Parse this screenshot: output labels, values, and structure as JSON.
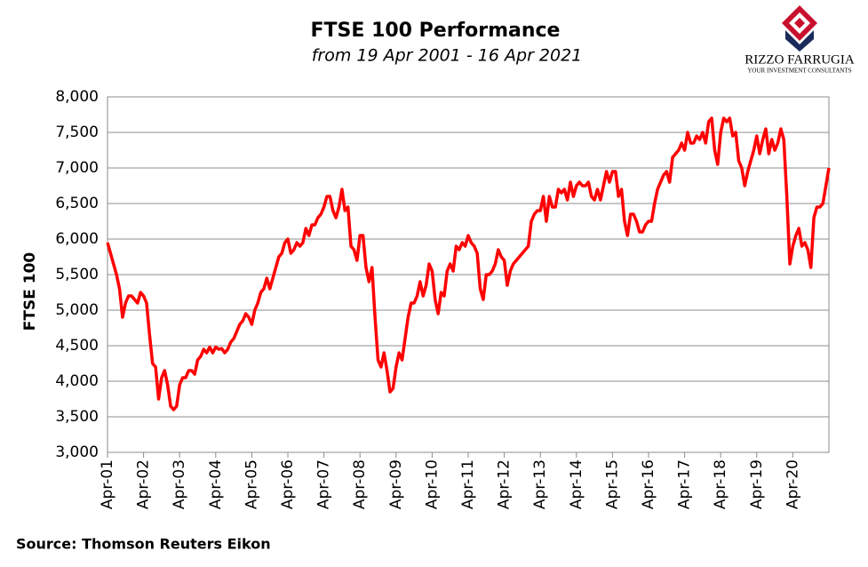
{
  "chart_data": {
    "type": "line",
    "title": "FTSE 100 Performance",
    "subtitle": "from 19 Apr 2001 - 16 Apr 2021",
    "y_label": "FTSE 100",
    "source": "Source: Thomson Reuters Eikon",
    "logo": {
      "name": "RIZZO FARRUGIA",
      "tagline": "YOUR INVESTMENT CONSULTANTS"
    },
    "color": "#ff0000",
    "grid": true,
    "ylim": [
      3000,
      8000
    ],
    "yticks": [
      {
        "value": 3000,
        "label": "3,000"
      },
      {
        "value": 3500,
        "label": "3,500"
      },
      {
        "value": 4000,
        "label": "4,000"
      },
      {
        "value": 4500,
        "label": "4,500"
      },
      {
        "value": 5000,
        "label": "5,000"
      },
      {
        "value": 5500,
        "label": "5,500"
      },
      {
        "value": 6000,
        "label": "6,000"
      },
      {
        "value": 6500,
        "label": "6,500"
      },
      {
        "value": 7000,
        "label": "7,000"
      },
      {
        "value": 7500,
        "label": "7,500"
      },
      {
        "value": 8000,
        "label": "8,000"
      }
    ],
    "categories": [
      "Apr-01",
      null,
      null,
      null,
      null,
      null,
      null,
      null,
      null,
      null,
      null,
      null,
      "Apr-02",
      null,
      null,
      null,
      null,
      null,
      null,
      null,
      null,
      null,
      null,
      null,
      "Apr-03",
      null,
      null,
      null,
      null,
      null,
      null,
      null,
      null,
      null,
      null,
      null,
      "Apr-04",
      null,
      null,
      null,
      null,
      null,
      null,
      null,
      null,
      null,
      null,
      null,
      "Apr-05",
      null,
      null,
      null,
      null,
      null,
      null,
      null,
      null,
      null,
      null,
      null,
      "Apr-06",
      null,
      null,
      null,
      null,
      null,
      null,
      null,
      null,
      null,
      null,
      null,
      "Apr-07",
      null,
      null,
      null,
      null,
      null,
      null,
      null,
      null,
      null,
      null,
      null,
      "Apr-08",
      null,
      null,
      null,
      null,
      null,
      null,
      null,
      null,
      null,
      null,
      null,
      "Apr-09",
      null,
      null,
      null,
      null,
      null,
      null,
      null,
      null,
      null,
      null,
      null,
      "Apr-10",
      null,
      null,
      null,
      null,
      null,
      null,
      null,
      null,
      null,
      null,
      null,
      "Apr-11",
      null,
      null,
      null,
      null,
      null,
      null,
      null,
      null,
      null,
      null,
      null,
      "Apr-12",
      null,
      null,
      null,
      null,
      null,
      null,
      null,
      null,
      null,
      null,
      null,
      "Apr-13",
      null,
      null,
      null,
      null,
      null,
      null,
      null,
      null,
      null,
      null,
      null,
      "Apr-14",
      null,
      null,
      null,
      null,
      null,
      null,
      null,
      null,
      null,
      null,
      null,
      "Apr-15",
      null,
      null,
      null,
      null,
      null,
      null,
      null,
      null,
      null,
      null,
      null,
      "Apr-16",
      null,
      null,
      null,
      null,
      null,
      null,
      null,
      null,
      null,
      null,
      null,
      "Apr-17",
      null,
      null,
      null,
      null,
      null,
      null,
      null,
      null,
      null,
      null,
      null,
      "Apr-18",
      null,
      null,
      null,
      null,
      null,
      null,
      null,
      null,
      null,
      null,
      null,
      "Apr-19",
      null,
      null,
      null,
      null,
      null,
      null,
      null,
      null,
      null,
      null,
      null,
      "Apr-20",
      null,
      null,
      null,
      null,
      null,
      null,
      null,
      null,
      null,
      null,
      null,
      null
    ],
    "values": [
      5950,
      5800,
      5650,
      5500,
      5300,
      4900,
      5100,
      5200,
      5200,
      5150,
      5100,
      5250,
      5200,
      5100,
      4650,
      4250,
      4200,
      3750,
      4050,
      4150,
      3950,
      3650,
      3600,
      3650,
      3950,
      4050,
      4050,
      4150,
      4150,
      4100,
      4300,
      4350,
      4450,
      4400,
      4480,
      4400,
      4480,
      4450,
      4460,
      4400,
      4450,
      4550,
      4600,
      4700,
      4800,
      4850,
      4950,
      4900,
      4800,
      5000,
      5100,
      5250,
      5300,
      5450,
      5300,
      5450,
      5600,
      5750,
      5800,
      5950,
      6000,
      5800,
      5850,
      5950,
      5900,
      5950,
      6150,
      6050,
      6200,
      6200,
      6300,
      6350,
      6450,
      6600,
      6600,
      6400,
      6300,
      6450,
      6700,
      6400,
      6450,
      5900,
      5850,
      5700,
      6050,
      6050,
      5600,
      5400,
      5600,
      4900,
      4300,
      4200,
      4400,
      4150,
      3850,
      3900,
      4200,
      4400,
      4300,
      4600,
      4900,
      5100,
      5100,
      5200,
      5400,
      5200,
      5350,
      5650,
      5550,
      5150,
      4950,
      5250,
      5200,
      5550,
      5650,
      5550,
      5900,
      5850,
      5950,
      5900,
      6050,
      5950,
      5900,
      5800,
      5300,
      5150,
      5500,
      5500,
      5550,
      5650,
      5850,
      5750,
      5700,
      5350,
      5550,
      5650,
      5700,
      5750,
      5800,
      5850,
      5900,
      6250,
      6350,
      6400,
      6400,
      6600,
      6250,
      6600,
      6450,
      6450,
      6700,
      6650,
      6700,
      6550,
      6800,
      6600,
      6750,
      6800,
      6750,
      6750,
      6800,
      6600,
      6550,
      6700,
      6550,
      6750,
      6950,
      6800,
      6950,
      6950,
      6600,
      6700,
      6250,
      6050,
      6350,
      6350,
      6250,
      6100,
      6100,
      6200,
      6250,
      6250,
      6500,
      6700,
      6800,
      6900,
      6950,
      6800,
      7150,
      7200,
      7250,
      7350,
      7250,
      7500,
      7350,
      7350,
      7450,
      7400,
      7500,
      7350,
      7650,
      7700,
      7250,
      7050,
      7500,
      7700,
      7650,
      7700,
      7450,
      7500,
      7100,
      7000,
      6750,
      6950,
      7100,
      7250,
      7450,
      7200,
      7400,
      7550,
      7200,
      7400,
      7250,
      7350,
      7550,
      7400,
      6600,
      5650,
      5900,
      6050,
      6150,
      5900,
      5950,
      5850,
      5600,
      6300,
      6450,
      6450,
      6500,
      6750,
      7000
    ]
  }
}
